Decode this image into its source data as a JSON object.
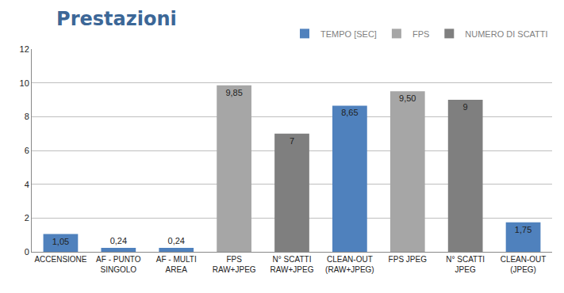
{
  "chart_data": {
    "type": "bar",
    "title": "Prestazioni",
    "categories": [
      "ACCENSIONE",
      "AF - PUNTO SINGOLO",
      "AF - MULTI AREA",
      "FPS RAW+JPEG",
      "N° SCATTI RAW+JPEG",
      "CLEAN-OUT (RAW+JPEG)",
      "FPS JPEG",
      "N° SCATTI JPEG",
      "CLEAN-OUT (JPEG)"
    ],
    "series": [
      {
        "name": "TEMPO [SEC]",
        "color": "#4f81bd",
        "values": [
          1.05,
          0.24,
          0.24,
          null,
          null,
          8.65,
          null,
          null,
          1.75
        ],
        "value_labels": [
          "1,05",
          "0,24",
          "0,24",
          null,
          null,
          "8,65",
          null,
          null,
          "1,75"
        ]
      },
      {
        "name": "FPS",
        "color": "#a6a6a6",
        "values": [
          null,
          null,
          null,
          9.85,
          null,
          null,
          9.5,
          null,
          null
        ],
        "value_labels": [
          null,
          null,
          null,
          "9,85",
          null,
          null,
          "9,50",
          null,
          null
        ]
      },
      {
        "name": "NUMERO DI SCATTI",
        "color": "#7f7f7f",
        "values": [
          null,
          null,
          null,
          null,
          7,
          null,
          null,
          9,
          null
        ]
      }
    ],
    "ylim": [
      0,
      12
    ],
    "yticks": [
      0,
      2,
      4,
      6,
      8,
      10,
      12
    ],
    "grid": true,
    "data_labels": true,
    "legend": "top right"
  }
}
